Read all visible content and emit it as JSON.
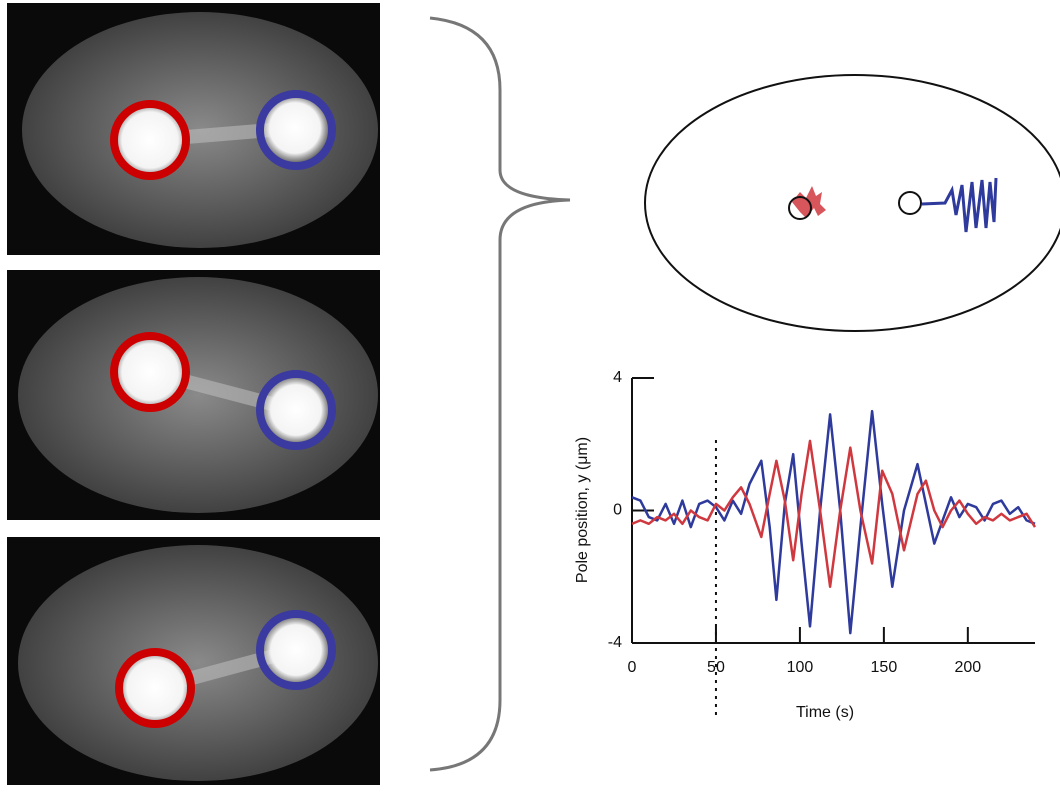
{
  "chart_data": {
    "type": "line",
    "x_label": "Time (s)",
    "y_label": "Pole position, y (μm)",
    "x": [
      0,
      5,
      10,
      15,
      20,
      25,
      30,
      35,
      40,
      45,
      50,
      55,
      60,
      65,
      70,
      77,
      82,
      86,
      91,
      96,
      101,
      106,
      112,
      118,
      124,
      130,
      136,
      143,
      149,
      155,
      162,
      170,
      175,
      180,
      185,
      190,
      195,
      200,
      205,
      210,
      215,
      220,
      225,
      230,
      235,
      240
    ],
    "series": [
      {
        "color": "#2e3a9c",
        "values": [
          0.4,
          0.3,
          -0.2,
          -0.3,
          0.2,
          -0.4,
          0.3,
          -0.5,
          0.2,
          0.3,
          0.1,
          -0.3,
          0.3,
          -0.1,
          0.8,
          1.5,
          -0.5,
          -2.7,
          0.2,
          1.7,
          -1.0,
          -3.5,
          0.0,
          2.9,
          0.0,
          -3.7,
          -0.5,
          3.0,
          0.2,
          -2.3,
          0.0,
          1.4,
          0.2,
          -1.0,
          -0.3,
          0.4,
          -0.2,
          0.2,
          0.1,
          -0.3,
          0.2,
          0.3,
          -0.1,
          0.1,
          -0.3,
          -0.4
        ]
      },
      {
        "color": "#d0383f",
        "values": [
          -0.4,
          -0.3,
          -0.4,
          -0.2,
          -0.3,
          -0.1,
          -0.4,
          0.0,
          -0.2,
          -0.3,
          0.2,
          0.0,
          0.4,
          0.7,
          0.2,
          -0.8,
          0.5,
          1.5,
          0.3,
          -1.5,
          0.5,
          2.1,
          0.0,
          -2.3,
          0.0,
          1.9,
          0.0,
          -1.6,
          1.2,
          0.5,
          -1.2,
          0.5,
          0.9,
          0.0,
          -0.5,
          0.0,
          0.3,
          -0.1,
          -0.4,
          -0.2,
          -0.3,
          -0.1,
          -0.3,
          -0.2,
          -0.1,
          -0.5
        ]
      }
    ],
    "xlim": [
      0,
      240
    ],
    "ylim": [
      -4,
      4
    ],
    "xticks": [
      0,
      50,
      100,
      150,
      200
    ],
    "yticks": [
      -4,
      0,
      4
    ],
    "vline_x": 50
  }
}
